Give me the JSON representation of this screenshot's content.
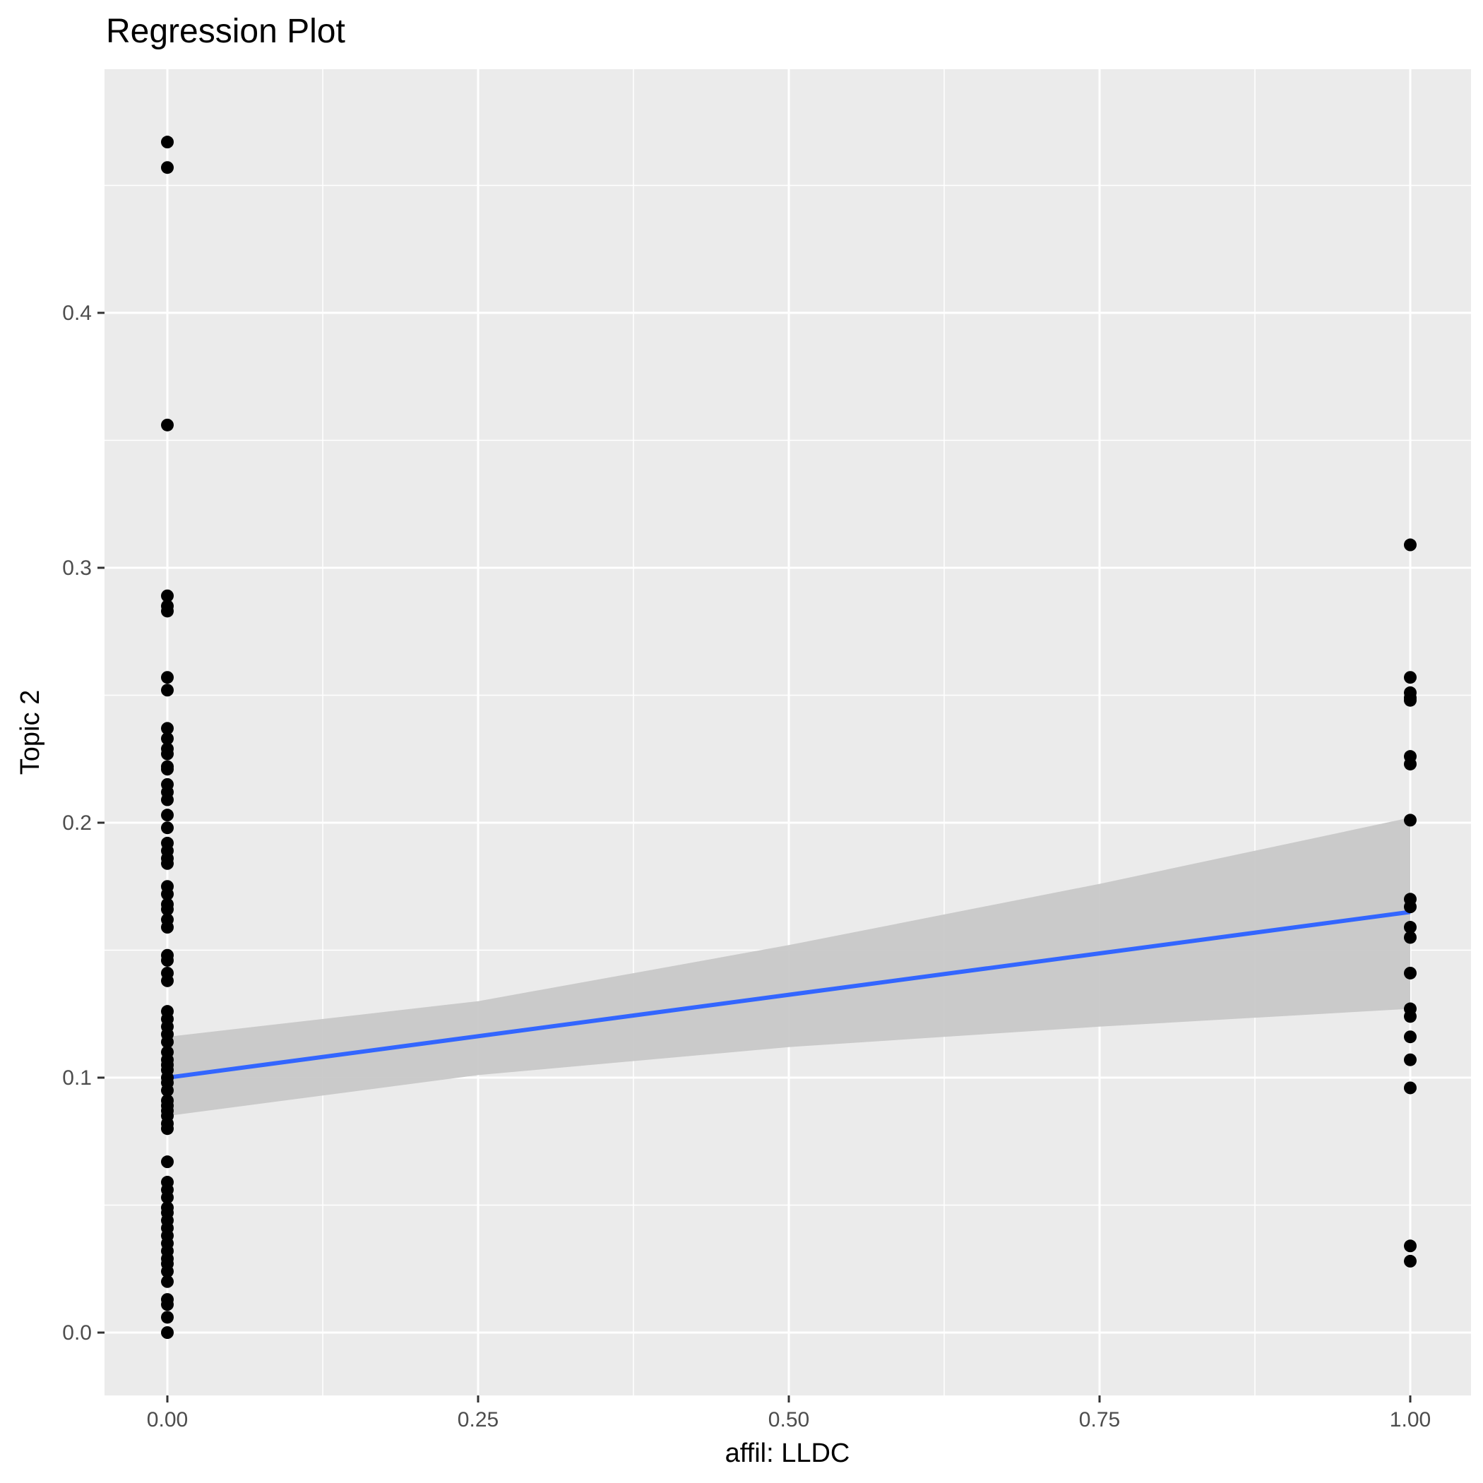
{
  "chart_data": {
    "type": "scatter",
    "title": "Regression Plot",
    "xlabel": "affil: LLDC",
    "ylabel": "Topic 2",
    "xlim": [
      -0.05,
      1.05
    ],
    "ylim": [
      -0.02,
      0.49
    ],
    "x_ticks": [
      0.0,
      0.25,
      0.5,
      0.75,
      1.0
    ],
    "x_tick_labels": [
      "0.00",
      "0.25",
      "0.50",
      "0.75",
      "1.00"
    ],
    "y_ticks": [
      0.0,
      0.1,
      0.2,
      0.3,
      0.4
    ],
    "y_tick_labels": [
      "0.0",
      "0.1",
      "0.2",
      "0.3",
      "0.4"
    ],
    "grid": true,
    "panel_background": "#ebebeb",
    "point_color": "#000000",
    "line_color": "#3366ff",
    "band_color": "#c8c8c8",
    "series": [
      {
        "x": 0,
        "y": [
          0.467,
          0.457,
          0.356,
          0.289,
          0.285,
          0.283,
          0.257,
          0.252,
          0.237,
          0.233,
          0.229,
          0.227,
          0.222,
          0.221,
          0.215,
          0.212,
          0.209,
          0.203,
          0.198,
          0.192,
          0.189,
          0.186,
          0.184,
          0.175,
          0.172,
          0.168,
          0.166,
          0.162,
          0.159,
          0.148,
          0.146,
          0.141,
          0.138,
          0.126,
          0.123,
          0.12,
          0.117,
          0.114,
          0.11,
          0.107,
          0.105,
          0.103,
          0.1,
          0.098,
          0.095,
          0.091,
          0.089,
          0.087,
          0.085,
          0.082,
          0.08,
          0.067,
          0.059,
          0.056,
          0.053,
          0.049,
          0.047,
          0.044,
          0.041,
          0.038,
          0.035,
          0.032,
          0.029,
          0.027,
          0.024,
          0.02,
          0.013,
          0.011,
          0.006,
          0.0
        ]
      },
      {
        "x": 1,
        "y": [
          0.309,
          0.257,
          0.251,
          0.249,
          0.248,
          0.226,
          0.223,
          0.201,
          0.17,
          0.167,
          0.159,
          0.155,
          0.141,
          0.127,
          0.124,
          0.116,
          0.107,
          0.096,
          0.034,
          0.028
        ]
      }
    ],
    "fit_line": {
      "x": [
        0,
        1
      ],
      "y": [
        0.1,
        0.165
      ]
    },
    "confidence_band": {
      "x": [
        0,
        0.25,
        0.5,
        0.75,
        1
      ],
      "lower": [
        0.085,
        0.101,
        0.112,
        0.12,
        0.127
      ],
      "upper": [
        0.116,
        0.13,
        0.152,
        0.176,
        0.202
      ]
    }
  }
}
